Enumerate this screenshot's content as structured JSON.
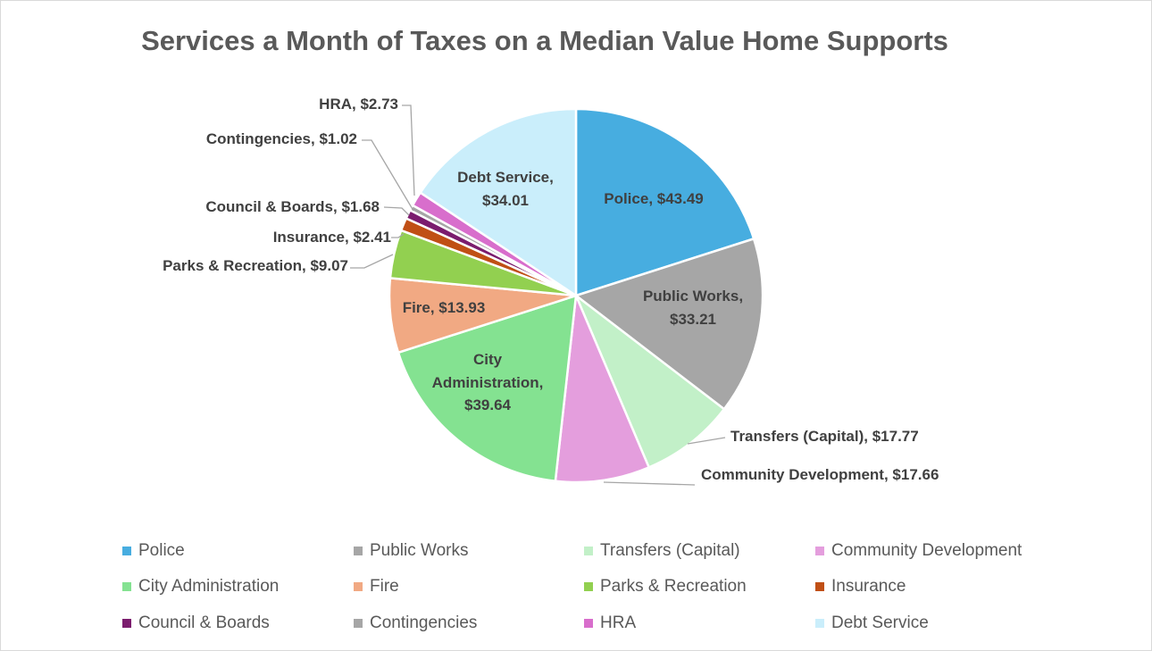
{
  "chart_data": {
    "type": "pie",
    "title": "Services a Month of Taxes on a Median Value Home Supports",
    "start_angle": "12 o'clock, clockwise",
    "legend_position": "bottom",
    "categories": [
      "Police",
      "Public Works",
      "Transfers (Capital)",
      "Community Development",
      "City Administration",
      "Fire",
      "Parks & Recreation",
      "Insurance",
      "Council & Boards",
      "Contingencies",
      "HRA",
      "Debt Service"
    ],
    "values": [
      43.49,
      33.21,
      17.77,
      17.66,
      39.64,
      13.93,
      9.07,
      2.41,
      1.68,
      1.02,
      2.73,
      34.01
    ],
    "data_labels": [
      "Police, $43.49",
      "Public Works, $33.21",
      "Transfers (Capital), $17.77",
      "Community Development, $17.66",
      "City Administration, $39.64",
      "Fire, $13.93",
      "Parks & Recreation, $9.07",
      "Insurance, $2.41",
      "Council & Boards, $1.68",
      "Contingencies, $1.02",
      "HRA, $2.73",
      "Debt Service, $34.01"
    ],
    "colors": [
      "#47ADE0",
      "#A6A6A6",
      "#C2F0C8",
      "#E49EDD",
      "#84E291",
      "#F1A983",
      "#92D050",
      "#C04F15",
      "#7B1C6E",
      "#A6A6A6",
      "#D86ECC",
      "#CAEEFB"
    ]
  }
}
